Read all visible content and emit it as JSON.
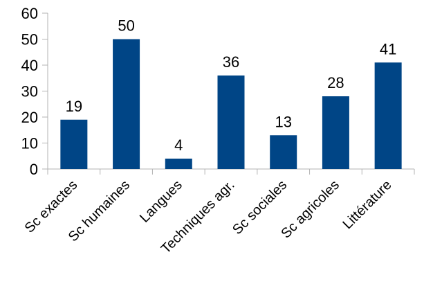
{
  "chart_data": {
    "type": "bar",
    "categories": [
      "Sc exactes",
      "Sc humaines",
      "Langues",
      "Techniques agr.",
      "Sc sociales",
      "Sc agricoles",
      "Littérature"
    ],
    "values": [
      19,
      50,
      4,
      36,
      13,
      28,
      41
    ],
    "title": "",
    "xlabel": "",
    "ylabel": "",
    "ylim": [
      0,
      60
    ],
    "yticks": [
      0,
      10,
      20,
      30,
      40,
      50,
      60
    ],
    "grid": false,
    "legend": "none",
    "bar_color": "#004586",
    "data_labels": true
  }
}
